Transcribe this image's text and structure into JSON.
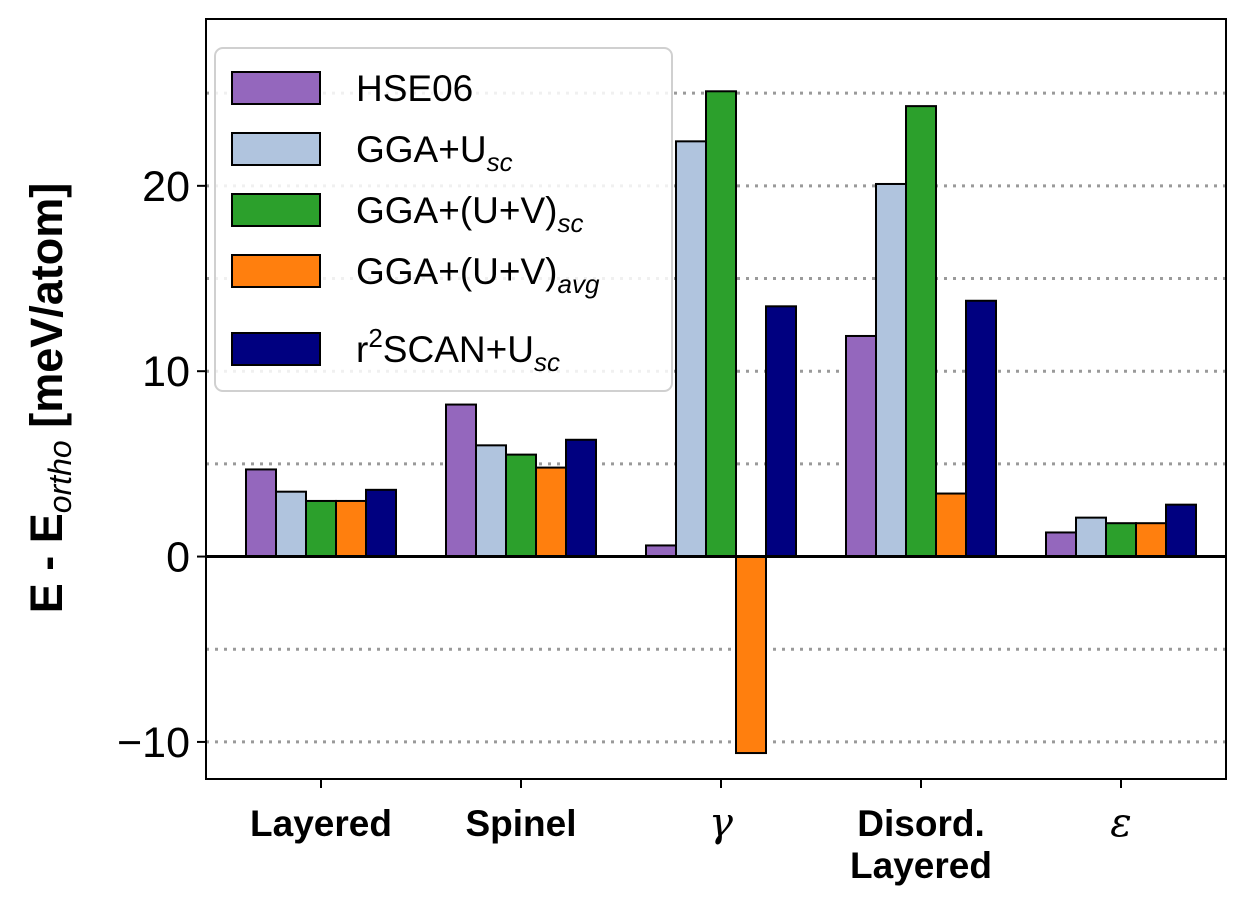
{
  "chart_data": {
    "type": "bar",
    "title": "",
    "xlabel": "",
    "ylabel": {
      "prefix": "E - E",
      "subscript": "ortho",
      "suffix": " [meV/atom]"
    },
    "ylim": [
      -12,
      29
    ],
    "yticks": [
      -10,
      0,
      10,
      20
    ],
    "ytick_labels": [
      "−10",
      "0",
      "10",
      "20"
    ],
    "gridlines": [
      -10,
      -5,
      5,
      10,
      15,
      20,
      25
    ],
    "grid": "dotted horizontal",
    "legend_position": "top-left",
    "categories": [
      {
        "lines": [
          "Layered"
        ],
        "style": "bold"
      },
      {
        "lines": [
          "Spinel"
        ],
        "style": "bold"
      },
      {
        "lines": [
          "γ"
        ],
        "style": "greek"
      },
      {
        "lines": [
          "Disord.",
          "Layered"
        ],
        "style": "bold"
      },
      {
        "lines": [
          "ε"
        ],
        "style": "greek"
      }
    ],
    "series": [
      {
        "name": "HSE06",
        "label_base": "HSE06",
        "label_sub": "",
        "label_sup": "",
        "label_tail": "",
        "color": "#9467bd",
        "values": [
          4.7,
          8.2,
          0.6,
          11.9,
          1.3
        ]
      },
      {
        "name": "GGA+Usc",
        "label_base": "GGA+U",
        "label_sub": "sc",
        "label_sup": "",
        "label_tail": "",
        "color": "#b0c4de",
        "values": [
          3.5,
          6.0,
          22.4,
          20.1,
          2.1
        ]
      },
      {
        "name": "GGA+(U+V)sc",
        "label_base": "GGA+(U+V)",
        "label_sub": "sc",
        "label_sup": "",
        "label_tail": "",
        "color": "#2ca02c",
        "values": [
          3.0,
          5.5,
          25.1,
          24.3,
          1.8
        ]
      },
      {
        "name": "GGA+(U+V)avg",
        "label_base": "GGA+(U+V)",
        "label_sub": "avg",
        "label_sup": "",
        "label_tail": "",
        "color": "#ff7f0e",
        "values": [
          3.0,
          4.8,
          -10.6,
          3.4,
          1.8
        ]
      },
      {
        "name": "r2SCAN+Usc",
        "label_base": "r",
        "label_sub": "sc",
        "label_sup": "2",
        "label_tail": "SCAN+U",
        "color": "#000080",
        "values": [
          3.6,
          6.3,
          13.5,
          13.8,
          2.8
        ]
      }
    ]
  }
}
